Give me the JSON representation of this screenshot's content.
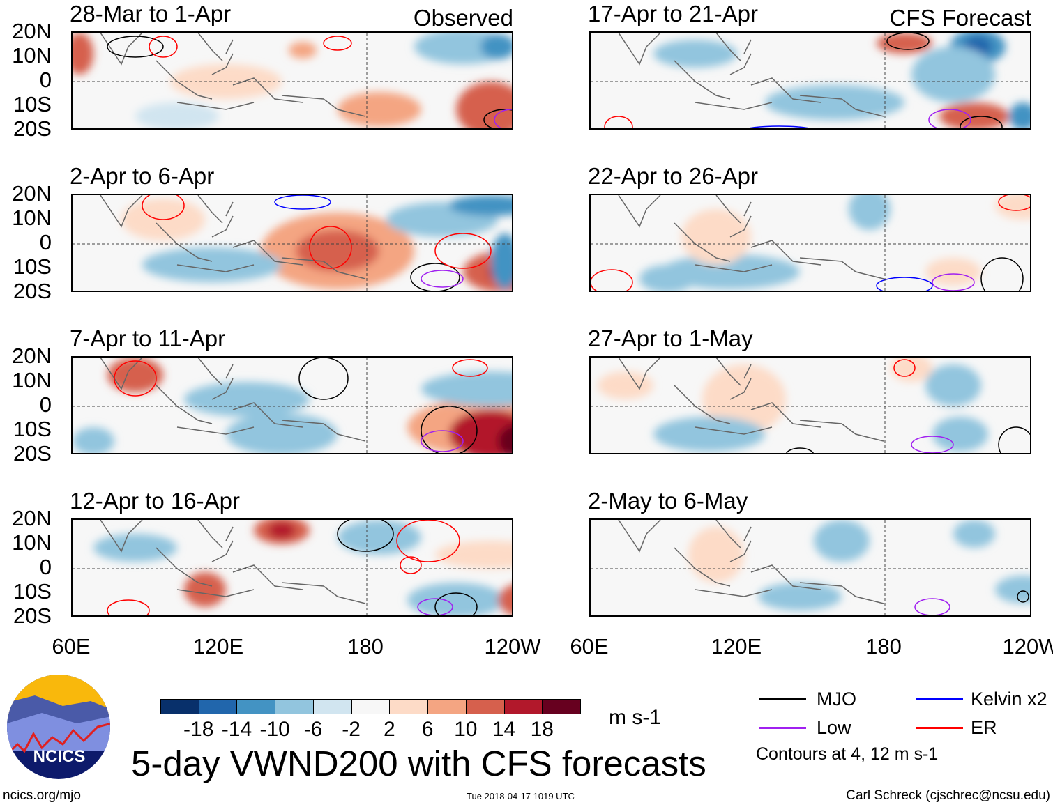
{
  "panels": {
    "left": [
      {
        "title": "28-Mar to 1-Apr",
        "tag": "Observed"
      },
      {
        "title": "2-Apr to 6-Apr"
      },
      {
        "title": "7-Apr to 11-Apr"
      },
      {
        "title": "12-Apr to 16-Apr"
      }
    ],
    "right": [
      {
        "title": "17-Apr to 21-Apr",
        "tag": "CFS Forecast"
      },
      {
        "title": "22-Apr to 26-Apr"
      },
      {
        "title": "27-Apr to 1-May"
      },
      {
        "title": "2-May to 6-May"
      }
    ]
  },
  "axes": {
    "lat_labels": [
      "20N",
      "10N",
      "0",
      "10S",
      "20S"
    ],
    "lon_labels": [
      "60E",
      "120E",
      "180",
      "120W"
    ]
  },
  "colorbar": {
    "labels": [
      "-18",
      "-14",
      "-10",
      "-6",
      "-2",
      "2",
      "6",
      "10",
      "14",
      "18"
    ],
    "colors": [
      "#08306b",
      "#2166ac",
      "#4393c3",
      "#92c5de",
      "#d1e5f0",
      "#f7f7f7",
      "#fddbc7",
      "#f4a582",
      "#d6604d",
      "#b2182b",
      "#67001f"
    ],
    "units": "m s-1"
  },
  "legend": {
    "items": [
      {
        "label": "MJO",
        "color": "#000000"
      },
      {
        "label": "Kelvin x2",
        "color": "#0000ff"
      },
      {
        "label": "Low",
        "color": "#a020f0"
      },
      {
        "label": "ER",
        "color": "#ff0000"
      }
    ],
    "note": "Contours at 4, 12 m s-1"
  },
  "logo": {
    "text": "NCICS"
  },
  "title": "5-day VWND200 with CFS forecasts",
  "footer": {
    "url": "ncics.org/mjo",
    "timestamp": "Tue 2018-04-17 1019 UTC",
    "credit": "Carl Schreck (cjschrec@ncsu.edu)"
  }
}
